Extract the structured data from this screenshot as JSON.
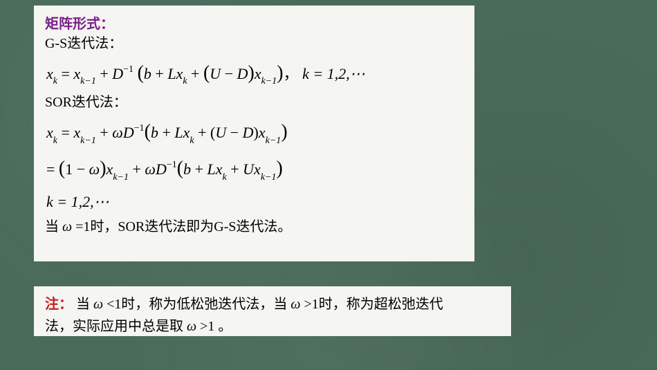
{
  "background_color": "#4a6b5a",
  "panel_background": "#f5f5f2",
  "title_color": "#7a1f8a",
  "note_color": "#c22020",
  "text_color": "#000000",
  "font_size_body": 20,
  "font_size_math": 22,
  "top_panel": {
    "title": "矩阵形式：",
    "gs_label": "G-S迭代法：",
    "gs_formula": {
      "lhs_var": "x",
      "lhs_sub": "k",
      "rhs_prefix_var": "x",
      "rhs_prefix_sub": "k−1",
      "plus": " + ",
      "D": "D",
      "D_sup": "−1",
      "open": "(",
      "b": "b",
      "plus2": " + ",
      "L": "L",
      "xk": "x",
      "xk_sub": "k",
      "plus3": " + ",
      "open2": "(",
      "U": "U",
      "minus": " − ",
      "D2": "D",
      "close2": ")",
      "xk1": "x",
      "xk1_sub": "k−1",
      "close": ")",
      "comma": "，",
      "k_range": "k = 1,2,⋯"
    },
    "sor_label": "SOR迭代法：",
    "sor_line1": {
      "lhs_var": "x",
      "lhs_sub": "k",
      "eq": " = ",
      "x1": "x",
      "x1_sub": "k−1",
      "plus": " + ",
      "omega": "ω",
      "D": "D",
      "D_sup": "−1",
      "open": "(",
      "b": "b",
      "plus2": " + ",
      "L": "L",
      "xk": "x",
      "xk_sub": "k",
      "plus3": " + ",
      "open2": "(",
      "U": "U",
      "minus": " − ",
      "D2": "D",
      "close2": ")",
      "xk1": "x",
      "xk1_sub": "k−1",
      "close": ")"
    },
    "sor_line2": {
      "eq": "= ",
      "open": "(",
      "one": "1",
      "minus": " − ",
      "omega": "ω",
      "close": ")",
      "x1": "x",
      "x1_sub": "k−1",
      "plus": " + ",
      "omega2": "ω",
      "D": "D",
      "D_sup": "−1",
      "open2": "(",
      "b": "b",
      "plus2": " + ",
      "L": "L",
      "xk": "x",
      "xk_sub": "k",
      "plus3": " + ",
      "U": "U",
      "xk1": "x",
      "xk1_sub": "k−1",
      "close2": ")"
    },
    "sor_line3": "k = 1,2,⋯",
    "closing_text_pre": "当 ",
    "closing_omega": "ω",
    "closing_text_mid": " =1时，SOR迭代法即为G-S迭代法。"
  },
  "bottom_panel": {
    "note_label": "注：",
    "line1_pre": " 当 ",
    "omega1": "ω",
    "line1_mid": " <1时，称为低松弛迭代法，当 ",
    "omega2": "ω",
    "line1_post": " >1时，称为超松弛迭代",
    "line2_pre": "法，实际应用中总是取 ",
    "omega3": "ω",
    "line2_post": " >1 。"
  }
}
